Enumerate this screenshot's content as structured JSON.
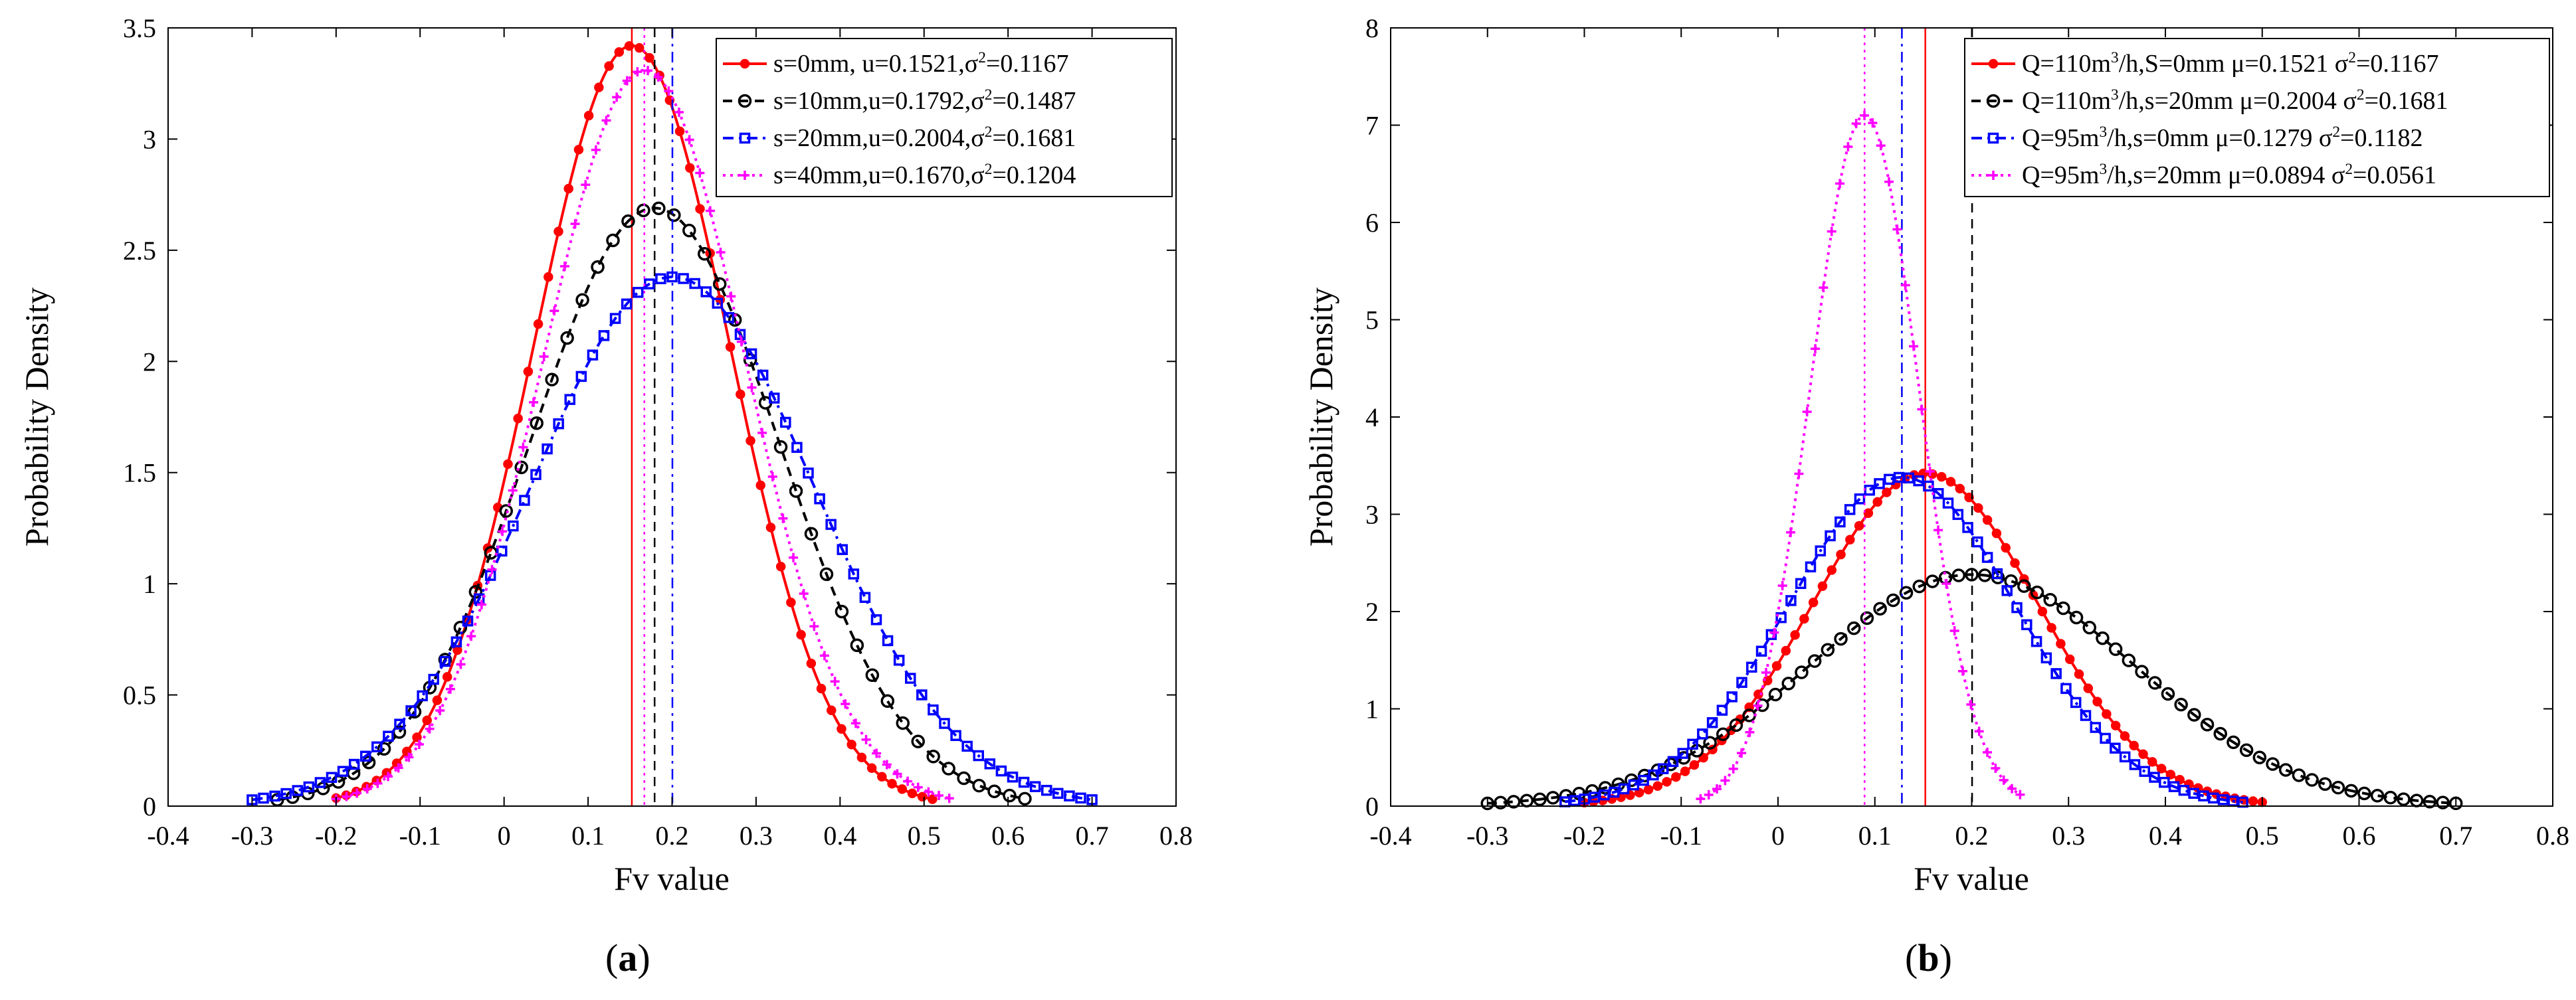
{
  "chart_data": [
    {
      "type": "line",
      "panel_label": "(a)",
      "panel_letter": "a",
      "xlabel": "Fv value",
      "ylabel": "Probability Density",
      "xlim": [
        -0.4,
        0.8
      ],
      "ylim": [
        0,
        3.5
      ],
      "xticks": [
        -0.4,
        -0.3,
        -0.2,
        -0.1,
        0,
        0.1,
        0.2,
        0.3,
        0.4,
        0.5,
        0.6,
        0.7,
        0.8
      ],
      "yticks": [
        0,
        0.5,
        1,
        1.5,
        2,
        2.5,
        3,
        3.5
      ],
      "xtick_labels": [
        "-0.4",
        "-0.3",
        "-0.2",
        "-0.1",
        "0",
        "0.1",
        "0.2",
        "0.3",
        "0.4",
        "0.5",
        "0.6",
        "0.7",
        "0.8"
      ],
      "ytick_labels": [
        "0",
        "0.5",
        "1",
        "1.5",
        "2",
        "2.5",
        "3",
        "3.5"
      ],
      "legend_position": "top-right",
      "series": [
        {
          "legend_main": "s=0mm, u=0.1521,σ",
          "legend_tail": "=0.1167",
          "mean": 0.1521,
          "sd": 0.1167,
          "peak": 3.42,
          "x_range": [
            -0.2,
            0.51
          ],
          "n_markers": 60,
          "color": "#ff0000",
          "marker": "dot",
          "line": "solid",
          "vline": 0.1521
        },
        {
          "legend_main": "s=10mm,u=0.1792,σ",
          "legend_tail": "=0.1487",
          "mean": 0.1792,
          "sd": 0.1487,
          "peak": 2.69,
          "x_range": [
            -0.27,
            0.62
          ],
          "n_markers": 50,
          "color": "#000000",
          "marker": "circle",
          "line": "dash",
          "vline": 0.1792
        },
        {
          "legend_main": "s=20mm,u=0.2004,σ",
          "legend_tail": "=0.1681",
          "mean": 0.2004,
          "sd": 0.1681,
          "peak": 2.38,
          "x_range": [
            -0.3,
            0.7
          ],
          "n_markers": 75,
          "color": "#0000ff",
          "marker": "square",
          "line": "dashdot",
          "vline": 0.2004
        },
        {
          "legend_main": "s=40mm,u=0.1670,σ",
          "legend_tail": "=0.1204",
          "mean": 0.167,
          "sd": 0.1204,
          "peak": 3.31,
          "x_range": [
            -0.2,
            0.53
          ],
          "n_markers": 60,
          "color": "#ff00ff",
          "marker": "plus",
          "line": "dot",
          "vline": 0.167
        }
      ]
    },
    {
      "type": "line",
      "panel_label": "(b)",
      "panel_letter": "b",
      "xlabel": "Fv value",
      "ylabel": "Probability Density",
      "xlim": [
        -0.4,
        0.8
      ],
      "ylim": [
        0,
        8
      ],
      "xticks": [
        -0.4,
        -0.3,
        -0.2,
        -0.1,
        0,
        0.1,
        0.2,
        0.3,
        0.4,
        0.5,
        0.6,
        0.7,
        0.8
      ],
      "yticks": [
        0,
        1,
        2,
        3,
        4,
        5,
        6,
        7,
        8
      ],
      "xtick_labels": [
        "-0.4",
        "-0.3",
        "-0.2",
        "-0.1",
        "0",
        "0.1",
        "0.2",
        "0.3",
        "0.4",
        "0.5",
        "0.6",
        "0.7",
        "0.8"
      ],
      "ytick_labels": [
        "0",
        "1",
        "2",
        "3",
        "4",
        "5",
        "6",
        "7",
        "8"
      ],
      "legend_position": "top-right",
      "series": [
        {
          "legend_main": "Q=110m",
          "legend_sup": "3",
          "legend_rest": "/h,S=0mm μ=0.1521 σ",
          "legend_tail": "=0.1167",
          "mean": 0.1521,
          "sd": 0.1167,
          "peak": 3.42,
          "x_range": [
            -0.2,
            0.5
          ],
          "n_markers": 75,
          "color": "#ff0000",
          "marker": "dot",
          "line": "solid",
          "vline": 0.1521
        },
        {
          "legend_main": "Q=110m",
          "legend_sup": "3",
          "legend_rest": "/h,s=20mm μ=0.2004 σ",
          "legend_tail": "=0.1681",
          "mean": 0.2004,
          "sd": 0.1681,
          "peak": 2.38,
          "x_range": [
            -0.3,
            0.7
          ],
          "n_markers": 75,
          "color": "#000000",
          "marker": "circle",
          "line": "dash",
          "vline": 0.2004
        },
        {
          "legend_main": "Q=95m",
          "legend_sup": "3",
          "legend_rest": "/h,s=0mm  μ=0.1279 σ",
          "legend_tail": "=0.1182",
          "mean": 0.1279,
          "sd": 0.1182,
          "peak": 3.38,
          "x_range": [
            -0.22,
            0.48
          ],
          "n_markers": 70,
          "color": "#0000ff",
          "marker": "square",
          "line": "dashdot",
          "vline": 0.1279
        },
        {
          "legend_main": "Q=95m",
          "legend_sup": "3",
          "legend_rest": "/h,s=20mm μ=0.0894 σ",
          "legend_tail": "=0.0561",
          "mean": 0.0894,
          "sd": 0.0561,
          "peak": 7.1,
          "x_range": [
            -0.08,
            0.25
          ],
          "n_markers": 40,
          "color": "#ff00ff",
          "marker": "plus",
          "line": "dot",
          "vline": 0.0894
        }
      ]
    }
  ]
}
